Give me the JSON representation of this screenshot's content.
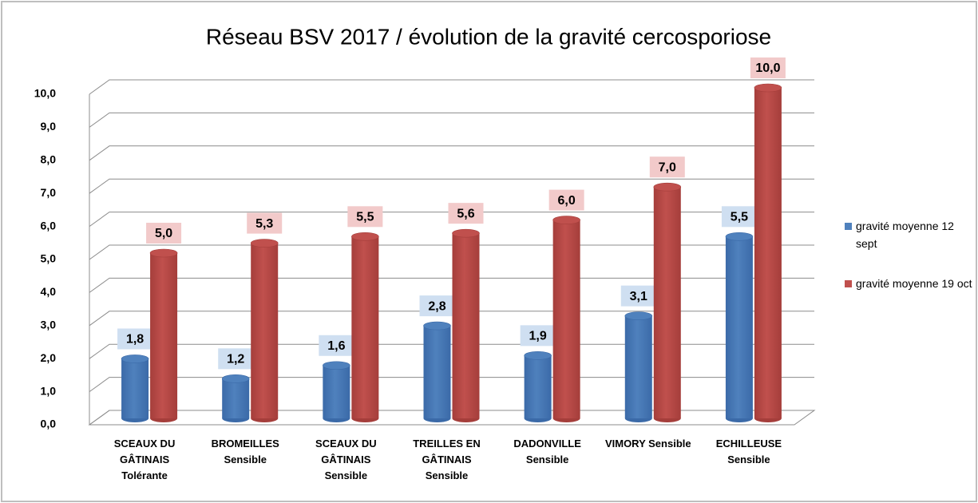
{
  "chart_data": {
    "type": "bar3d",
    "title": "Réseau BSV 2017 / évolution de la gravité cercosporiose",
    "categories": [
      "SCEAUX DU GÂTINAIS Tolérante",
      "BROMEILLES Sensible",
      "SCEAUX DU GÂTINAIS Sensible",
      "TREILLES EN GÂTINAIS Sensible",
      "DADONVILLE Sensible",
      "VIMORY Sensible",
      "ECHILLEUSE Sensible"
    ],
    "series": [
      {
        "name": "gravité moyenne 12 sept",
        "color": "#4f81bd",
        "values": [
          1.8,
          1.2,
          1.6,
          2.8,
          1.9,
          3.1,
          5.5
        ],
        "value_labels": [
          "1,8",
          "1,2",
          "1,6",
          "2,8",
          "1,9",
          "3,1",
          "5,5"
        ]
      },
      {
        "name": "gravité moyenne 19 oct",
        "color": "#c0504d",
        "values": [
          5.0,
          5.3,
          5.5,
          5.6,
          6.0,
          7.0,
          10.0
        ],
        "value_labels": [
          "5,0",
          "5,3",
          "5,5",
          "5,6",
          "6,0",
          "7,0",
          "10,0"
        ]
      }
    ],
    "ylim": [
      0,
      10
    ],
    "yticks": [
      {
        "value": 0,
        "label": "0,0"
      },
      {
        "value": 1,
        "label": "1,0"
      },
      {
        "value": 2,
        "label": "2,0"
      },
      {
        "value": 3,
        "label": "3,0"
      },
      {
        "value": 4,
        "label": "4,0"
      },
      {
        "value": 5,
        "label": "5,0"
      },
      {
        "value": 6,
        "label": "6,0"
      },
      {
        "value": 7,
        "label": "7,0"
      },
      {
        "value": 8,
        "label": "8,0"
      },
      {
        "value": 9,
        "label": "9,0"
      },
      {
        "value": 10,
        "label": "10,0"
      }
    ],
    "grid": true,
    "legend": "right"
  }
}
